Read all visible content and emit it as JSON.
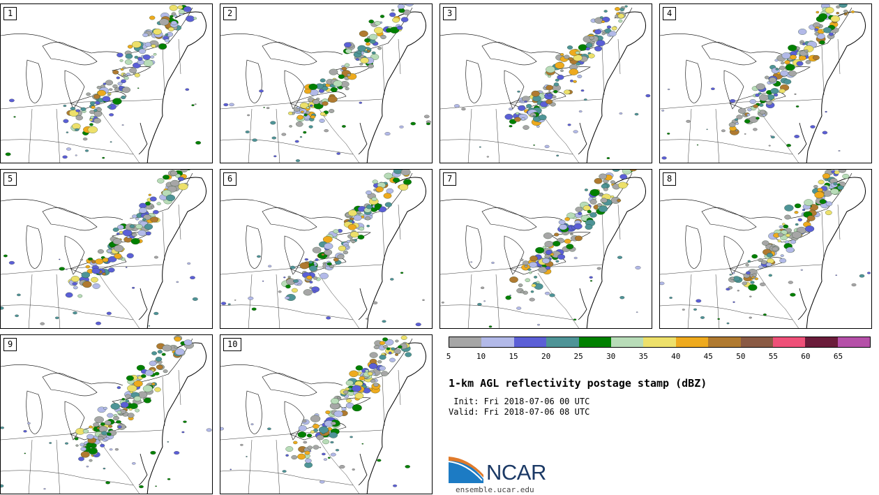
{
  "panels": [
    {
      "label": "1"
    },
    {
      "label": "2"
    },
    {
      "label": "3"
    },
    {
      "label": "4"
    },
    {
      "label": "5"
    },
    {
      "label": "6"
    },
    {
      "label": "7"
    },
    {
      "label": "8"
    },
    {
      "label": "9"
    },
    {
      "label": "10"
    }
  ],
  "colorbar": {
    "ticks": [
      "5",
      "10",
      "15",
      "20",
      "25",
      "30",
      "35",
      "40",
      "45",
      "50",
      "55",
      "60",
      "65"
    ],
    "colors": [
      "#a6a6a6",
      "#b2b9e8",
      "#5b5fd6",
      "#4e9497",
      "#008000",
      "#b8dcb8",
      "#ede06a",
      "#eeaa1e",
      "#b07a30",
      "#8a5a44",
      "#ee5078",
      "#6a1c3a",
      "#b550a8"
    ]
  },
  "title": "1-km AGL reflectivity postage stamp (dBZ)",
  "init": " Init: Fri 2018-07-06 00 UTC",
  "valid": "Valid: Fri 2018-07-06 08 UTC",
  "logo": {
    "text": "NCAR",
    "colors": {
      "blue": "#1c7bc4",
      "orange": "#e07a2a",
      "navy": "#1c3a66"
    }
  },
  "site": "ensemble.ucar.edu"
}
